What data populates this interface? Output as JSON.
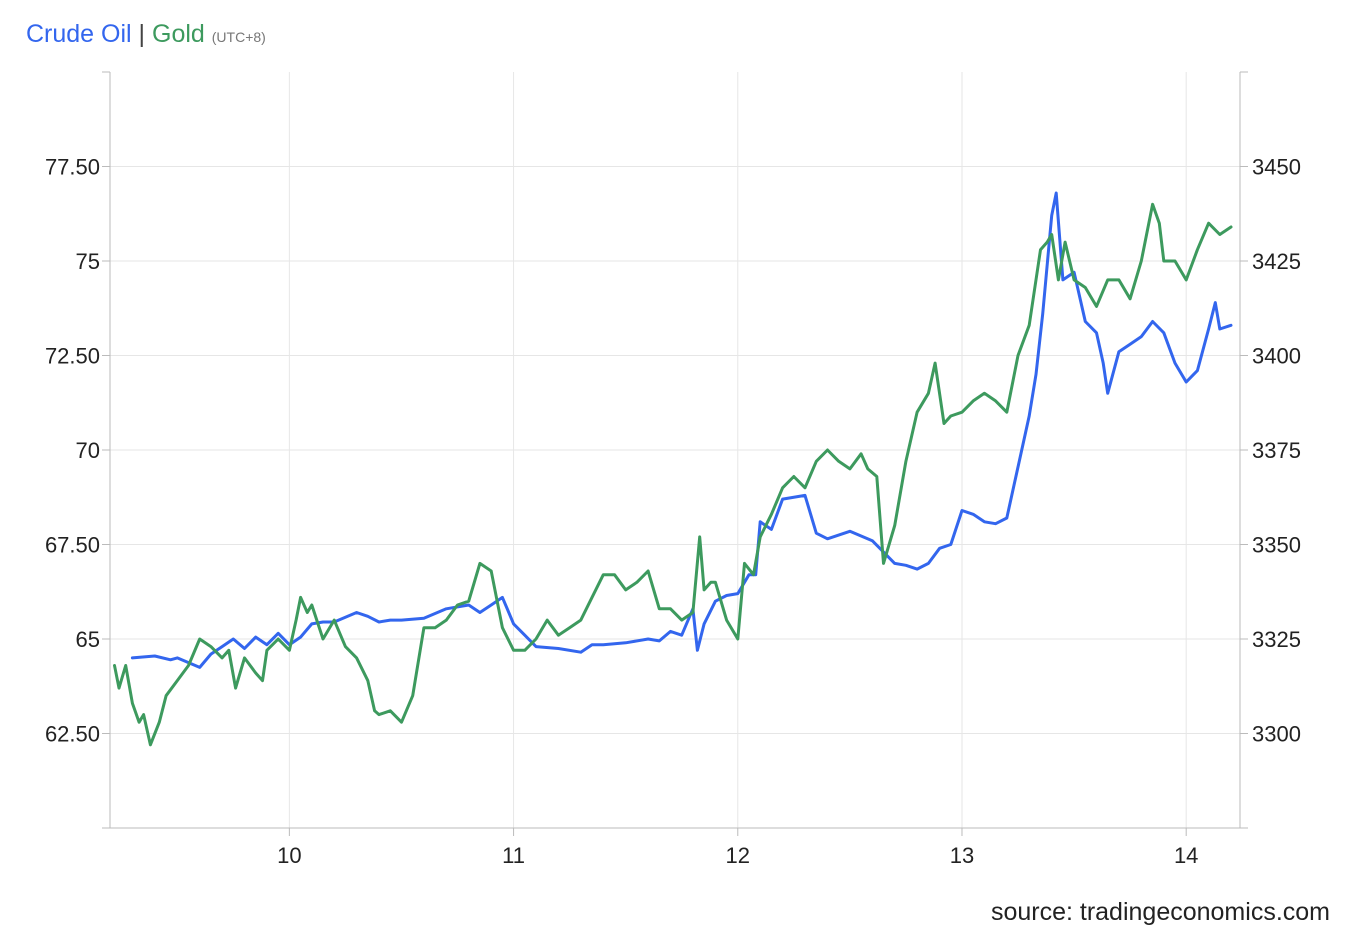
{
  "legend": {
    "oil_label": "Crude Oil",
    "separator": "|",
    "gold_label": "Gold",
    "timezone": "(UTC+8)"
  },
  "source": "source: tradingeconomics.com",
  "colors": {
    "oil": "#3366ee",
    "gold": "#3d9a5e",
    "grid": "#e6e6e6",
    "axis": "#bbbbbb"
  },
  "chart_data": {
    "type": "line",
    "x_ticks": [
      "10",
      "11",
      "12",
      "13",
      "14"
    ],
    "xlim": [
      9.2,
      14.24
    ],
    "grid": true,
    "left_axis": {
      "ticks": [
        "62.50",
        "65",
        "67.50",
        "70",
        "72.50",
        "75",
        "77.50"
      ],
      "tick_values": [
        62.5,
        65,
        67.5,
        70,
        72.5,
        75,
        77.5
      ],
      "ylim": [
        60,
        80
      ]
    },
    "right_axis": {
      "ticks": [
        "3300",
        "3325",
        "3350",
        "3375",
        "3400",
        "3425",
        "3450"
      ],
      "tick_values": [
        3300,
        3325,
        3350,
        3375,
        3400,
        3425,
        3450
      ],
      "ylim": [
        3275,
        3475
      ]
    },
    "series": [
      {
        "name": "Crude Oil",
        "axis": "left",
        "x": [
          9.3,
          9.4,
          9.47,
          9.5,
          9.6,
          9.65,
          9.7,
          9.75,
          9.8,
          9.85,
          9.9,
          9.95,
          10.0,
          10.05,
          10.1,
          10.15,
          10.2,
          10.3,
          10.35,
          10.4,
          10.45,
          10.5,
          10.6,
          10.7,
          10.8,
          10.85,
          10.9,
          10.95,
          11.0,
          11.05,
          11.1,
          11.2,
          11.3,
          11.35,
          11.4,
          11.5,
          11.6,
          11.65,
          11.7,
          11.75,
          11.8,
          11.82,
          11.85,
          11.9,
          11.95,
          12.0,
          12.05,
          12.08,
          12.1,
          12.15,
          12.2,
          12.3,
          12.35,
          12.4,
          12.5,
          12.6,
          12.7,
          12.75,
          12.8,
          12.85,
          12.9,
          12.95,
          13.0,
          13.05,
          13.1,
          13.15,
          13.2,
          13.3,
          13.33,
          13.36,
          13.4,
          13.42,
          13.45,
          13.5,
          13.55,
          13.6,
          13.63,
          13.65,
          13.7,
          13.75,
          13.8,
          13.85,
          13.9,
          13.95,
          14.0,
          14.05,
          14.1,
          14.13,
          14.15,
          14.2
        ],
        "values": [
          64.5,
          64.55,
          64.45,
          64.5,
          64.25,
          64.6,
          64.8,
          65.0,
          64.75,
          65.05,
          64.85,
          65.15,
          64.85,
          65.05,
          65.4,
          65.45,
          65.45,
          65.7,
          65.6,
          65.45,
          65.5,
          65.5,
          65.55,
          65.8,
          65.9,
          65.7,
          65.9,
          66.1,
          65.4,
          65.1,
          64.8,
          64.75,
          64.65,
          64.85,
          64.85,
          64.9,
          65.0,
          64.95,
          65.2,
          65.1,
          65.8,
          64.7,
          65.4,
          66.0,
          66.15,
          66.2,
          66.7,
          66.7,
          68.1,
          67.9,
          68.7,
          68.8,
          67.8,
          67.65,
          67.85,
          67.6,
          67.0,
          66.95,
          66.85,
          67.0,
          67.4,
          67.5,
          68.4,
          68.3,
          68.1,
          68.05,
          68.2,
          70.9,
          72.0,
          73.6,
          76.2,
          76.8,
          74.5,
          74.7,
          73.4,
          73.1,
          72.3,
          71.5,
          72.6,
          72.8,
          73.0,
          73.4,
          73.1,
          72.3,
          71.8,
          72.1,
          73.2,
          73.9,
          73.2,
          73.3
        ]
      },
      {
        "name": "Gold",
        "axis": "right",
        "x": [
          9.22,
          9.24,
          9.27,
          9.3,
          9.33,
          9.35,
          9.38,
          9.42,
          9.45,
          9.5,
          9.55,
          9.6,
          9.65,
          9.7,
          9.73,
          9.76,
          9.8,
          9.85,
          9.88,
          9.9,
          9.95,
          10.0,
          10.03,
          10.05,
          10.08,
          10.1,
          10.15,
          10.2,
          10.25,
          10.3,
          10.35,
          10.38,
          10.4,
          10.45,
          10.5,
          10.55,
          10.6,
          10.65,
          10.7,
          10.75,
          10.8,
          10.85,
          10.9,
          10.95,
          11.0,
          11.05,
          11.1,
          11.15,
          11.2,
          11.25,
          11.3,
          11.35,
          11.4,
          11.45,
          11.5,
          11.55,
          11.6,
          11.65,
          11.7,
          11.75,
          11.8,
          11.83,
          11.85,
          11.88,
          11.9,
          11.95,
          12.0,
          12.03,
          12.07,
          12.1,
          12.15,
          12.2,
          12.25,
          12.3,
          12.35,
          12.4,
          12.45,
          12.5,
          12.55,
          12.58,
          12.62,
          12.65,
          12.7,
          12.75,
          12.8,
          12.85,
          12.88,
          12.92,
          12.95,
          13.0,
          13.05,
          13.1,
          13.15,
          13.2,
          13.25,
          13.3,
          13.35,
          13.38,
          13.4,
          13.43,
          13.46,
          13.5,
          13.55,
          13.6,
          13.65,
          13.7,
          13.75,
          13.8,
          13.85,
          13.88,
          13.9,
          13.95,
          14.0,
          14.05,
          14.1,
          14.15,
          14.2
        ],
        "values": [
          3318,
          3312,
          3318,
          3308,
          3303,
          3305,
          3297,
          3303,
          3310,
          3314,
          3318,
          3325,
          3323,
          3320,
          3322,
          3312,
          3320,
          3316,
          3314,
          3322,
          3325,
          3322,
          3330,
          3336,
          3332,
          3334,
          3325,
          3330,
          3323,
          3320,
          3314,
          3306,
          3305,
          3306,
          3303,
          3310,
          3328,
          3328,
          3330,
          3334,
          3335,
          3345,
          3343,
          3328,
          3322,
          3322,
          3325,
          3330,
          3326,
          3328,
          3330,
          3336,
          3342,
          3342,
          3338,
          3340,
          3343,
          3333,
          3333,
          3330,
          3332,
          3352,
          3338,
          3340,
          3340,
          3330,
          3325,
          3345,
          3342,
          3352,
          3358,
          3365,
          3368,
          3365,
          3372,
          3375,
          3372,
          3370,
          3374,
          3370,
          3368,
          3345,
          3355,
          3372,
          3385,
          3390,
          3398,
          3382,
          3384,
          3385,
          3388,
          3390,
          3388,
          3385,
          3400,
          3408,
          3428,
          3430,
          3432,
          3420,
          3430,
          3420,
          3418,
          3413,
          3420,
          3420,
          3415,
          3425,
          3440,
          3435,
          3425,
          3425,
          3420,
          3428,
          3435,
          3432,
          3434
        ]
      }
    ]
  }
}
